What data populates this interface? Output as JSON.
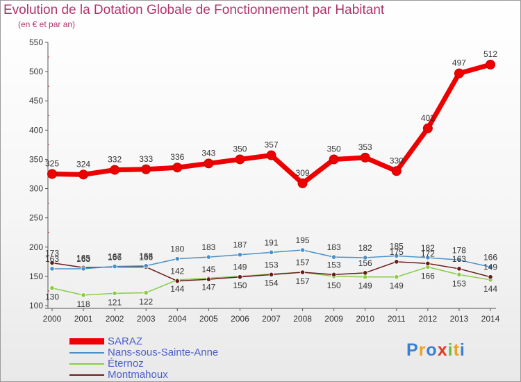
{
  "chart_data": {
    "type": "line",
    "title": "Evolution de la Dotation Globale de Fonctionnement par Habitant",
    "subtitle": "(en € et par an)",
    "x": [
      2000,
      2001,
      2002,
      2003,
      2004,
      2005,
      2006,
      2007,
      2008,
      2009,
      2010,
      2011,
      2012,
      2013,
      2014
    ],
    "ylim": [
      100,
      550
    ],
    "yticks": [
      100,
      150,
      200,
      250,
      300,
      350,
      400,
      450,
      500,
      550
    ],
    "grid": false,
    "legend_position": "bottom-left",
    "series": [
      {
        "name": "SARAZ",
        "color": "#ee0000",
        "values": [
          325,
          324,
          332,
          333,
          336,
          343,
          350,
          357,
          309,
          350,
          353,
          330,
          403,
          497,
          512
        ],
        "labels": [
          "325",
          "324",
          "332",
          "333",
          "336",
          "343",
          "350",
          "357",
          "309",
          "350",
          "353",
          "330",
          "403",
          "497",
          "512"
        ]
      },
      {
        "name": "Nans-sous-Sainte-Anne",
        "color": "#4a90c8",
        "values": [
          163,
          163,
          167,
          168,
          180,
          183,
          187,
          191,
          195,
          183,
          182,
          185,
          182,
          178,
          166
        ],
        "labels": [
          "163",
          "163",
          "167",
          "168",
          "180",
          "183",
          "187",
          "191",
          "195",
          "183",
          "182",
          "185",
          "182",
          "178",
          "166"
        ]
      },
      {
        "name": "Éternoz",
        "color": "#88cc44",
        "values": [
          130,
          118,
          121,
          122,
          144,
          147,
          150,
          154,
          157,
          150,
          149,
          149,
          166,
          153,
          144
        ],
        "labels": [
          "130",
          "118",
          "121",
          "122",
          "144",
          "147",
          "150",
          "154",
          "157",
          "150",
          "149",
          "149",
          "166",
          "153",
          "144"
        ]
      },
      {
        "name": "Montmahoux",
        "color": "#6b1a1a",
        "values": [
          173,
          165,
          166,
          166,
          142,
          145,
          149,
          153,
          157,
          153,
          156,
          175,
          172,
          163,
          149
        ],
        "labels": [
          "173",
          "165",
          "166",
          "166",
          "142",
          "145",
          "149",
          "153",
          "157",
          "153",
          "156",
          "175",
          "172",
          "163",
          "149"
        ]
      }
    ]
  },
  "legend": {
    "items": [
      {
        "label": "SARAZ"
      },
      {
        "label": "Nans-sous-Sainte-Anne"
      },
      {
        "label": "Éternoz"
      },
      {
        "label": "Montmahoux"
      }
    ]
  },
  "logo": {
    "letters": [
      "P",
      "r",
      "o",
      "x",
      "i",
      "t",
      "i"
    ],
    "colors": [
      "#3b7fd1",
      "#f0a020",
      "#3b7fd1",
      "#e23a2a",
      "#6cbf3a",
      "#f0a020",
      "#3b7fd1"
    ]
  }
}
